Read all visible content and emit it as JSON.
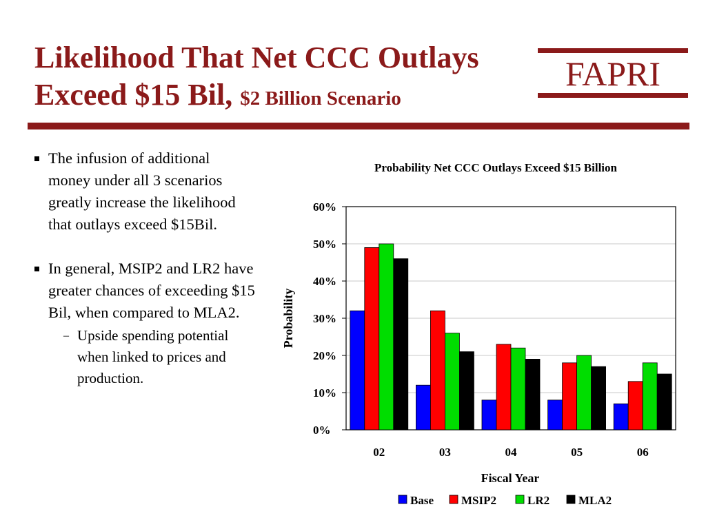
{
  "slide": {
    "title_line1": "Likelihood That Net CCC Outlays",
    "title_line2": "Exceed $15 Bil,",
    "title_sub": "$2 Billion Scenario",
    "logo_text": "FAPRI",
    "accent_color": "#8b1a1a"
  },
  "bullets": [
    {
      "text": "The infusion of additional money under all 3 scenarios greatly increase the likelihood that outlays exceed $15Bil.",
      "sub": []
    },
    {
      "text": "In general, MSIP2 and LR2 have greater chances of exceeding $15 Bil, when compared to MLA2.",
      "sub": [
        "Upside spending potential when linked to prices and production."
      ]
    }
  ],
  "sub_marker": "–",
  "chart_data": {
    "type": "bar",
    "title": "Probability Net CCC Outlays Exceed $15 Billion",
    "xlabel": "Fiscal Year",
    "ylabel": "Probability",
    "categories": [
      "02",
      "03",
      "04",
      "05",
      "06"
    ],
    "ylim": [
      0,
      60
    ],
    "yticks": [
      0,
      10,
      20,
      30,
      40,
      50,
      60
    ],
    "ytick_labels": [
      "0%",
      "10%",
      "20%",
      "30%",
      "40%",
      "50%",
      "60%"
    ],
    "grid": true,
    "legend": "bottom",
    "series": [
      {
        "name": "Base",
        "color": "#0000ff",
        "values": [
          32,
          12,
          8,
          8,
          7
        ]
      },
      {
        "name": "MSIP2",
        "color": "#ff0000",
        "values": [
          49,
          32,
          23,
          18,
          13
        ]
      },
      {
        "name": "LR2",
        "color": "#00dd00",
        "values": [
          50,
          26,
          22,
          20,
          18
        ]
      },
      {
        "name": "MLA2",
        "color": "#000000",
        "values": [
          46,
          21,
          19,
          17,
          15
        ]
      }
    ]
  }
}
